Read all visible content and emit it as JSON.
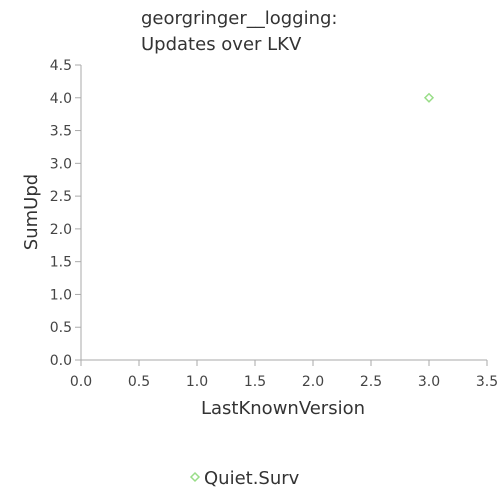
{
  "chart_data": {
    "type": "scatter",
    "title": [
      "georgringer__logging:",
      "Updates over LKV"
    ],
    "xlabel": "LastKnownVersion",
    "ylabel": "SumUpd",
    "xlim": [
      0,
      3.5
    ],
    "ylim": [
      0,
      4.5
    ],
    "xticks": [
      "0.0",
      "0.5",
      "1.0",
      "1.5",
      "2.0",
      "2.5",
      "3.0",
      "3.5"
    ],
    "yticks": [
      "0.0",
      "0.5",
      "1.0",
      "1.5",
      "2.0",
      "2.5",
      "3.0",
      "3.5",
      "4.0",
      "4.5"
    ],
    "grid": false,
    "legend_position": "bottom",
    "series": [
      {
        "name": "Quiet.Surv",
        "color": "#99dd88",
        "marker": "diamond",
        "points": [
          {
            "x": 3.0,
            "y": 4.0
          }
        ]
      }
    ]
  }
}
